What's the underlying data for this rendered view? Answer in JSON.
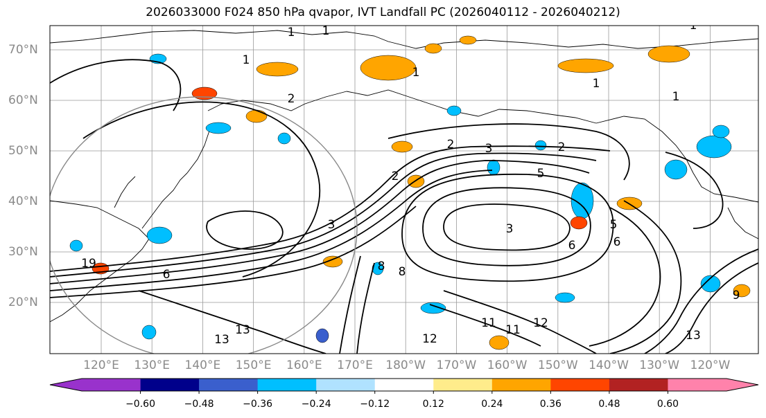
{
  "title": "2026033000 F024 850 hPa qvapor, IVT Landfall PC (2026040112 - 2026040212)",
  "lat_labels": [
    "70°N",
    "60°N",
    "50°N",
    "40°N",
    "30°N",
    "20°N"
  ],
  "lon_labels": [
    "120°E",
    "130°E",
    "140°E",
    "150°E",
    "160°E",
    "170°E",
    "180°W",
    "170°W",
    "160°W",
    "150°W",
    "140°W",
    "130°W",
    "120°W"
  ],
  "colorbar": {
    "ticks": [
      "−0.60",
      "−0.48",
      "−0.36",
      "−0.24",
      "−0.12",
      "0.12",
      "0.24",
      "0.36",
      "0.48",
      "0.60"
    ],
    "colors": [
      "#9932cc",
      "#00008b",
      "#3a5fcd",
      "#00bfff",
      "#b0e2ff",
      "#ffffff",
      "#ffec8b",
      "#ffa500",
      "#ff4500",
      "#b22222",
      "#ff82ab"
    ]
  },
  "contour_labels": [
    "1",
    "1",
    "1",
    "1",
    "1",
    "1",
    "1",
    "2",
    "2",
    "2",
    "2",
    "3",
    "3",
    "3",
    "5",
    "5",
    "6",
    "6",
    "6",
    "8",
    "8",
    "9",
    "11",
    "11",
    "12",
    "12",
    "13",
    "13",
    "13",
    "19"
  ]
}
